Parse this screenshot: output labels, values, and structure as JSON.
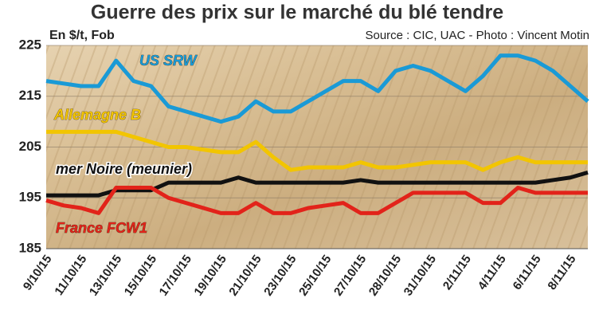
{
  "chart_data": {
    "type": "line",
    "title": "Guerre des prix sur le marché du blé tendre",
    "y_label": "En $/t, Fob",
    "source": "Source : CIC, UAC - Photo : Vincent Motin",
    "categories": [
      "9/10/15",
      null,
      "11/10/15",
      null,
      "13/10/15",
      null,
      "15/10/15",
      null,
      "17/10/15",
      null,
      "19/10/15",
      null,
      "21/10/15",
      null,
      "23/10/15",
      null,
      "25/10/15",
      null,
      "27/10/15",
      null,
      "28/10/15",
      null,
      "31/10/15",
      null,
      "2/11/15",
      null,
      "4/11/15",
      null,
      "6/11/15",
      null,
      "8/11/15",
      null
    ],
    "series": [
      {
        "name": "US SRW",
        "color": "#1a9ad6",
        "values": [
          218,
          217.5,
          217,
          217,
          222,
          218,
          217,
          213,
          212,
          211,
          210,
          211,
          214,
          212,
          212,
          214,
          216,
          218,
          218,
          216,
          220,
          221,
          220,
          218,
          216,
          219,
          223,
          223,
          222,
          220,
          217,
          214
        ]
      },
      {
        "name": "Allemagne B",
        "color": "#f2c500",
        "values": [
          208,
          208,
          208,
          208,
          208,
          207,
          206,
          205,
          205,
          204.5,
          204,
          204,
          206,
          203,
          200.5,
          201,
          201,
          201,
          202,
          201,
          201,
          201.5,
          202,
          202,
          202,
          200.5,
          202,
          203,
          202,
          202,
          202,
          202
        ]
      },
      {
        "name": "mer Noire (meunier)",
        "color": "#111111",
        "values": [
          195.5,
          195.5,
          195.5,
          195.5,
          196.5,
          196.5,
          196.5,
          198,
          198,
          198,
          198,
          199,
          198,
          198,
          198,
          198,
          198,
          198,
          198.5,
          198,
          198,
          198,
          198,
          198,
          198,
          198,
          198,
          198,
          198,
          198.5,
          199,
          200
        ]
      },
      {
        "name": "France FCW1",
        "color": "#e2231a",
        "values": [
          194.5,
          193.5,
          193,
          192,
          197,
          197,
          197,
          195,
          194,
          193,
          192,
          192,
          194,
          192,
          192,
          193,
          193.5,
          194,
          192,
          192,
          194,
          196,
          196,
          196,
          196,
          194,
          194,
          197,
          196,
          196,
          196,
          196
        ]
      }
    ],
    "ylim": [
      185,
      225
    ],
    "yticks": [
      185,
      195,
      205,
      215,
      225
    ],
    "grid": true
  }
}
